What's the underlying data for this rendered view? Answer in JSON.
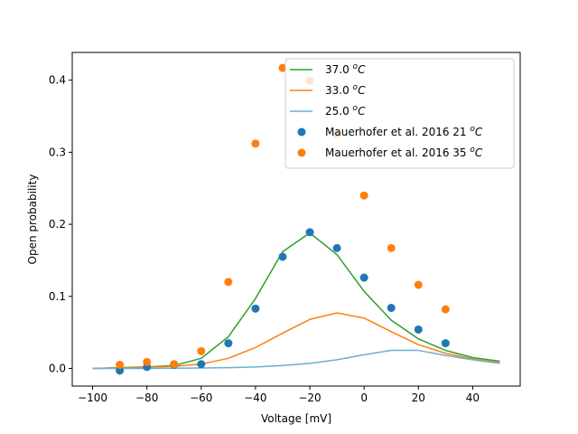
{
  "chart_data": {
    "type": "line",
    "xlabel": "Voltage [mV]",
    "ylabel": "Open probability",
    "xlim": [
      -107.5,
      57.5
    ],
    "ylim": [
      -0.0245,
      0.4385
    ],
    "xticks": [
      -100,
      -80,
      -60,
      -40,
      -20,
      0,
      20,
      40
    ],
    "yticks": [
      0.0,
      0.1,
      0.2,
      0.3,
      0.4
    ],
    "xtick_labels": [
      "−100",
      "−80",
      "−60",
      "−40",
      "−20",
      "0",
      "20",
      "40"
    ],
    "ytick_labels": [
      "0.0",
      "0.1",
      "0.2",
      "0.3",
      "0.4"
    ],
    "grid": false,
    "legend": "upper-right",
    "series": [
      {
        "name": "37.0 °C",
        "name_prefix": "37.0 ",
        "name_sup": "o",
        "name_suffix": "C",
        "kind": "line",
        "color": "#2ca02c",
        "x": [
          -100,
          -90,
          -80,
          -70,
          -60,
          -50,
          -40,
          -30,
          -20,
          -10,
          0,
          10,
          20,
          30,
          40,
          50
        ],
        "y": [
          0.0,
          0.001,
          0.002,
          0.004,
          0.014,
          0.044,
          0.097,
          0.162,
          0.188,
          0.158,
          0.107,
          0.067,
          0.041,
          0.025,
          0.015,
          0.01
        ]
      },
      {
        "name": "33.0 °C",
        "name_prefix": "33.0 ",
        "name_sup": "o",
        "name_suffix": "C",
        "kind": "line",
        "color": "#ff7f0e",
        "x": [
          -100,
          -90,
          -80,
          -70,
          -60,
          -50,
          -40,
          -30,
          -20,
          -10,
          0,
          10,
          20,
          30,
          40,
          50
        ],
        "y": [
          0.0,
          0.0005,
          0.0015,
          0.003,
          0.006,
          0.014,
          0.029,
          0.049,
          0.068,
          0.077,
          0.07,
          0.051,
          0.033,
          0.021,
          0.013,
          0.008
        ]
      },
      {
        "name": "25.0 °C",
        "name_prefix": "25.0 ",
        "name_sup": "o",
        "name_suffix": "C",
        "kind": "line",
        "color": "#6baed6",
        "x": [
          -100,
          -90,
          -80,
          -70,
          -60,
          -50,
          -40,
          -30,
          -20,
          -10,
          0,
          10,
          20,
          30,
          40,
          50
        ],
        "y": [
          0.0,
          0.0,
          0.0,
          0.0003,
          0.0006,
          0.001,
          0.002,
          0.004,
          0.007,
          0.012,
          0.019,
          0.025,
          0.025,
          0.018,
          0.012,
          0.007
        ]
      },
      {
        "name": "Mauerhofer et al. 2016 21 °C",
        "name_prefix": "Mauerhofer et al. 2016 21 ",
        "name_sup": "o",
        "name_suffix": "C",
        "kind": "scatter",
        "color": "#1f77b4",
        "x": [
          -90,
          -80,
          -70,
          -60,
          -50,
          -40,
          -30,
          -20,
          -10,
          0,
          10,
          20,
          30
        ],
        "y": [
          -0.003,
          0.002,
          0.005,
          0.006,
          0.035,
          0.083,
          0.155,
          0.189,
          0.167,
          0.126,
          0.084,
          0.054,
          0.035
        ]
      },
      {
        "name": "Mauerhofer et al. 2016 35 °C",
        "name_prefix": "Mauerhofer et al. 2016 35 ",
        "name_sup": "o",
        "name_suffix": "C",
        "kind": "scatter",
        "color": "#ff7f0e",
        "x": [
          -90,
          -80,
          -70,
          -60,
          -50,
          -40,
          -30,
          -20,
          -10,
          0,
          10,
          20,
          30
        ],
        "y": [
          0.005,
          0.009,
          0.006,
          0.024,
          0.12,
          0.312,
          0.417,
          0.399,
          0.325,
          0.24,
          0.167,
          0.116,
          0.082
        ]
      }
    ]
  }
}
